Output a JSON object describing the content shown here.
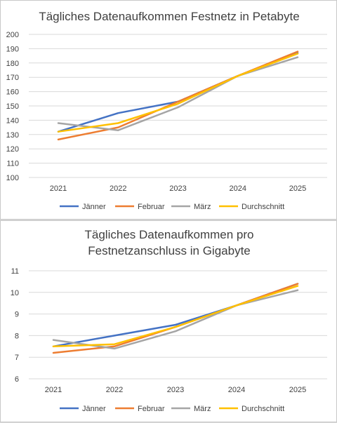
{
  "chart_data": [
    {
      "type": "line",
      "title": "Tägliches Datenaufkommen Festnetz in Petabyte",
      "categories": [
        "2021",
        "2022",
        "2023",
        "2024",
        "2025"
      ],
      "ylim": [
        100,
        200
      ],
      "ytick_step": 10,
      "grid": true,
      "legend": "bottom",
      "series": [
        {
          "name": "Jänner",
          "color": "#4472c4",
          "values": [
            132,
            145,
            153,
            171,
            187
          ]
        },
        {
          "name": "Februar",
          "color": "#ed7d31",
          "values": [
            126.5,
            135,
            153,
            171,
            188
          ]
        },
        {
          "name": "März",
          "color": "#a5a5a5",
          "values": [
            138,
            133,
            149,
            171,
            184
          ]
        },
        {
          "name": "Durchschnitt",
          "color": "#ffc000",
          "values": [
            132,
            138,
            151.5,
            171,
            186.5
          ]
        }
      ]
    },
    {
      "type": "line",
      "title": "Tägliches Datenaufkommen pro Festnetzanschluss in Gigabyte",
      "title_lines": [
        "Tägliches Datenaufkommen pro",
        "Festnetzanschluss in Gigabyte"
      ],
      "categories": [
        "2021",
        "2022",
        "2023",
        "2024",
        "2025"
      ],
      "ylim": [
        6,
        11
      ],
      "ytick_step": 1,
      "grid": true,
      "legend": "bottom",
      "series": [
        {
          "name": "Jänner",
          "color": "#4472c4",
          "values": [
            7.5,
            8.0,
            8.5,
            9.4,
            10.4
          ]
        },
        {
          "name": "Februar",
          "color": "#ed7d31",
          "values": [
            7.2,
            7.5,
            8.4,
            9.4,
            10.4
          ]
        },
        {
          "name": "März",
          "color": "#a5a5a5",
          "values": [
            7.8,
            7.4,
            8.2,
            9.4,
            10.1
          ]
        },
        {
          "name": "Durchschnitt",
          "color": "#ffc000",
          "values": [
            7.5,
            7.6,
            8.4,
            9.4,
            10.3
          ]
        }
      ]
    }
  ]
}
